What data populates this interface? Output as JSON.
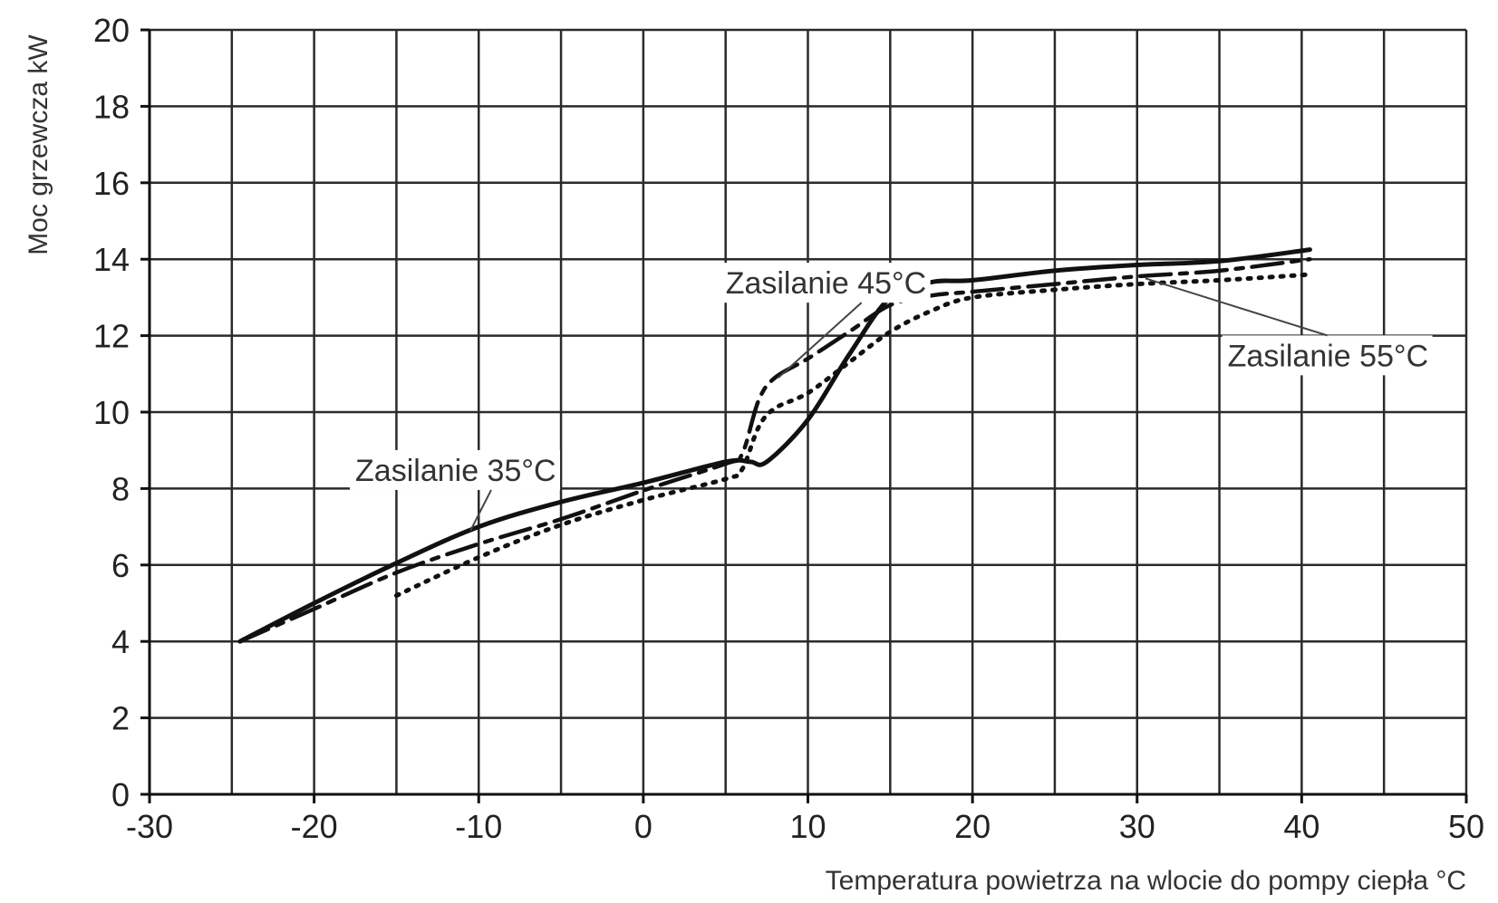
{
  "chart_data": {
    "type": "line",
    "xlabel": "Temperatura powietrza na wlocie do pompy ciepła °C",
    "ylabel": "Moc grzewcza kW",
    "xlim": [
      -30,
      50
    ],
    "ylim": [
      0,
      20
    ],
    "x_ticks": [
      "-30",
      "-20",
      "-10",
      "0",
      "10",
      "20",
      "30",
      "40",
      "50"
    ],
    "y_ticks": [
      "0",
      "2",
      "4",
      "6",
      "8",
      "10",
      "12",
      "14",
      "16",
      "18",
      "20"
    ],
    "grid": true,
    "series": [
      {
        "name": "Zasilanie 35°C",
        "line_style": "solid",
        "color": "#111111",
        "x": [
          -24.5,
          -20,
          -15,
          -10,
          -5,
          0,
          5,
          6.5,
          7.5,
          10,
          12.5,
          15,
          17.5,
          20,
          25,
          30,
          35,
          40.5
        ],
        "y": [
          4.0,
          5.0,
          6.05,
          7.0,
          7.65,
          8.15,
          8.7,
          8.7,
          8.7,
          9.8,
          11.5,
          13.0,
          13.4,
          13.45,
          13.7,
          13.85,
          13.95,
          14.25
        ]
      },
      {
        "name": "Zasilanie 45°C",
        "line_style": "dashed",
        "color": "#111111",
        "x": [
          -24.5,
          -20,
          -15,
          -10,
          -5,
          0,
          5,
          6,
          7,
          8,
          10,
          12.5,
          15,
          17.5,
          20,
          25,
          30,
          35,
          40.5
        ],
        "y": [
          4.0,
          4.85,
          5.8,
          6.55,
          7.2,
          7.95,
          8.65,
          8.9,
          10.3,
          10.9,
          11.4,
          12.1,
          12.8,
          13.05,
          13.15,
          13.35,
          13.55,
          13.7,
          14.0
        ]
      },
      {
        "name": "Zasilanie 55°C",
        "line_style": "dotted",
        "color": "#111111",
        "x": [
          -15,
          -10,
          -5,
          0,
          5,
          6,
          7,
          8,
          10,
          12.5,
          15,
          17.5,
          20,
          25,
          30,
          35,
          40.5
        ],
        "y": [
          5.2,
          6.2,
          7.05,
          7.7,
          8.25,
          8.5,
          9.6,
          10.1,
          10.5,
          11.3,
          12.1,
          12.65,
          13.0,
          13.2,
          13.35,
          13.45,
          13.6
        ]
      }
    ],
    "annotations": [
      {
        "text": "Zasilanie 35°C",
        "x": -17.5,
        "y": 8.2,
        "to_x": -10.5,
        "to_y": 6.9
      },
      {
        "text": "Zasilanie 45°C",
        "x": 5,
        "y": 13.1,
        "to_x": 8.2,
        "to_y": 10.9
      },
      {
        "text": "Zasilanie 55°C",
        "x": 35.5,
        "y": 11.2,
        "to_x": 30.5,
        "to_y": 13.5
      }
    ]
  }
}
